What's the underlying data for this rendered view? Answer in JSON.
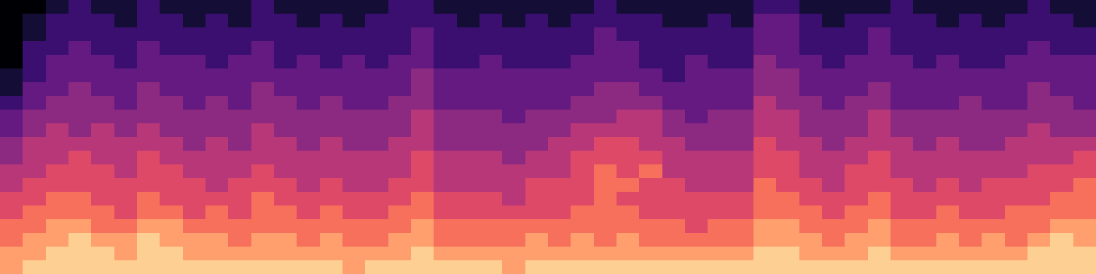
{
  "chart_data": {
    "type": "heatmap",
    "tick_labels": false,
    "color_range": [
      0,
      10
    ],
    "cells": [
      [
        0,
        0,
        1,
        2,
        1,
        1,
        2,
        1,
        1,
        1,
        1,
        2,
        1,
        1,
        1,
        1,
        1,
        2,
        2,
        1,
        1,
        1,
        1,
        1,
        1,
        1,
        2,
        1,
        1,
        1,
        1,
        1,
        1,
        2,
        2,
        1,
        1,
        1,
        1,
        2,
        1,
        1,
        1,
        1,
        1,
        2,
        1,
        1
      ],
      [
        0,
        1,
        2,
        2,
        2,
        1,
        2,
        2,
        1,
        2,
        1,
        2,
        2,
        1,
        2,
        1,
        2,
        2,
        2,
        2,
        1,
        2,
        1,
        2,
        1,
        2,
        2,
        2,
        2,
        1,
        1,
        2,
        1,
        3,
        3,
        2,
        1,
        2,
        2,
        2,
        2,
        1,
        2,
        1,
        2,
        2,
        2,
        1
      ],
      [
        0,
        1,
        2,
        2,
        2,
        2,
        2,
        2,
        2,
        2,
        2,
        2,
        2,
        2,
        2,
        2,
        2,
        2,
        3,
        2,
        2,
        2,
        2,
        2,
        2,
        2,
        3,
        2,
        2,
        2,
        2,
        2,
        2,
        3,
        3,
        2,
        2,
        2,
        3,
        2,
        2,
        2,
        2,
        2,
        2,
        2,
        2,
        2
      ],
      [
        0,
        2,
        2,
        3,
        2,
        2,
        3,
        2,
        2,
        2,
        2,
        3,
        2,
        2,
        2,
        2,
        2,
        2,
        3,
        2,
        2,
        2,
        2,
        2,
        2,
        2,
        3,
        3,
        2,
        2,
        2,
        2,
        2,
        3,
        3,
        2,
        2,
        2,
        3,
        2,
        2,
        2,
        2,
        2,
        2,
        3,
        2,
        2
      ],
      [
        0,
        2,
        3,
        3,
        3,
        2,
        3,
        3,
        3,
        2,
        3,
        3,
        2,
        3,
        2,
        3,
        2,
        3,
        3,
        2,
        2,
        3,
        2,
        2,
        2,
        3,
        3,
        3,
        2,
        2,
        3,
        2,
        2,
        4,
        3,
        3,
        2,
        3,
        3,
        3,
        2,
        3,
        2,
        2,
        3,
        3,
        3,
        3
      ],
      [
        1,
        2,
        3,
        3,
        3,
        3,
        3,
        3,
        3,
        3,
        3,
        3,
        3,
        3,
        3,
        3,
        3,
        3,
        4,
        3,
        3,
        3,
        3,
        3,
        3,
        3,
        3,
        3,
        3,
        2,
        3,
        3,
        3,
        4,
        4,
        3,
        3,
        3,
        3,
        3,
        3,
        3,
        3,
        3,
        3,
        3,
        3,
        3
      ],
      [
        1,
        3,
        3,
        4,
        3,
        3,
        4,
        3,
        3,
        3,
        3,
        4,
        3,
        3,
        3,
        3,
        3,
        3,
        4,
        3,
        3,
        3,
        3,
        3,
        3,
        3,
        4,
        4,
        3,
        3,
        3,
        3,
        3,
        4,
        4,
        3,
        3,
        3,
        4,
        3,
        3,
        3,
        3,
        3,
        3,
        4,
        3,
        3
      ],
      [
        2,
        3,
        4,
        4,
        4,
        3,
        4,
        4,
        3,
        4,
        3,
        4,
        4,
        3,
        4,
        3,
        3,
        4,
        4,
        3,
        3,
        3,
        3,
        3,
        3,
        4,
        4,
        4,
        4,
        3,
        3,
        3,
        3,
        5,
        4,
        4,
        3,
        4,
        4,
        3,
        3,
        3,
        4,
        3,
        3,
        4,
        4,
        3
      ],
      [
        3,
        4,
        4,
        4,
        4,
        4,
        4,
        4,
        4,
        4,
        4,
        4,
        4,
        4,
        4,
        4,
        4,
        4,
        5,
        4,
        4,
        4,
        3,
        4,
        4,
        4,
        4,
        5,
        5,
        4,
        3,
        4,
        4,
        5,
        5,
        4,
        4,
        4,
        5,
        4,
        4,
        4,
        4,
        4,
        4,
        4,
        4,
        4
      ],
      [
        3,
        4,
        5,
        4,
        5,
        4,
        5,
        4,
        4,
        4,
        4,
        5,
        4,
        4,
        4,
        4,
        4,
        4,
        5,
        4,
        4,
        4,
        4,
        4,
        4,
        5,
        5,
        5,
        5,
        4,
        4,
        4,
        4,
        5,
        5,
        4,
        4,
        4,
        5,
        4,
        4,
        4,
        4,
        4,
        4,
        5,
        4,
        4
      ],
      [
        4,
        5,
        5,
        5,
        5,
        5,
        5,
        5,
        4,
        5,
        4,
        5,
        5,
        4,
        5,
        4,
        4,
        5,
        5,
        4,
        4,
        4,
        4,
        4,
        5,
        5,
        6,
        6,
        5,
        5,
        4,
        4,
        4,
        6,
        5,
        5,
        4,
        5,
        5,
        5,
        4,
        5,
        4,
        4,
        5,
        5,
        5,
        5
      ],
      [
        4,
        5,
        5,
        6,
        5,
        5,
        6,
        5,
        5,
        5,
        5,
        5,
        5,
        5,
        5,
        5,
        5,
        5,
        6,
        5,
        5,
        5,
        4,
        5,
        5,
        6,
        6,
        6,
        6,
        5,
        5,
        5,
        5,
        6,
        6,
        5,
        5,
        5,
        6,
        5,
        5,
        5,
        5,
        5,
        5,
        5,
        5,
        6
      ],
      [
        5,
        5,
        6,
        6,
        6,
        5,
        6,
        6,
        5,
        5,
        5,
        6,
        5,
        5,
        5,
        5,
        5,
        5,
        6,
        5,
        5,
        5,
        5,
        5,
        5,
        6,
        7,
        6,
        7,
        5,
        5,
        5,
        5,
        6,
        6,
        5,
        5,
        6,
        6,
        5,
        5,
        5,
        5,
        5,
        5,
        6,
        6,
        6
      ],
      [
        5,
        6,
        6,
        6,
        6,
        6,
        6,
        6,
        6,
        5,
        6,
        6,
        6,
        5,
        6,
        5,
        5,
        6,
        6,
        5,
        5,
        5,
        5,
        6,
        6,
        6,
        7,
        7,
        6,
        6,
        5,
        5,
        5,
        7,
        6,
        6,
        5,
        6,
        6,
        6,
        5,
        6,
        5,
        6,
        6,
        6,
        6,
        7
      ],
      [
        6,
        6,
        7,
        7,
        6,
        6,
        7,
        6,
        6,
        6,
        6,
        7,
        6,
        6,
        6,
        6,
        6,
        6,
        7,
        6,
        6,
        6,
        5,
        6,
        6,
        6,
        7,
        6,
        6,
        6,
        6,
        6,
        6,
        7,
        7,
        6,
        6,
        6,
        7,
        6,
        6,
        6,
        6,
        6,
        6,
        6,
        7,
        7
      ],
      [
        6,
        7,
        7,
        7,
        7,
        6,
        7,
        7,
        6,
        7,
        6,
        7,
        7,
        6,
        7,
        6,
        6,
        7,
        7,
        6,
        6,
        6,
        6,
        6,
        6,
        7,
        7,
        7,
        6,
        6,
        6,
        6,
        6,
        7,
        7,
        7,
        6,
        7,
        7,
        6,
        6,
        7,
        6,
        6,
        7,
        7,
        7,
        7
      ],
      [
        7,
        7,
        8,
        8,
        7,
        7,
        8,
        8,
        7,
        7,
        7,
        7,
        7,
        7,
        7,
        7,
        7,
        7,
        8,
        7,
        7,
        7,
        7,
        7,
        7,
        7,
        7,
        7,
        7,
        7,
        6,
        7,
        7,
        8,
        8,
        7,
        7,
        7,
        8,
        7,
        7,
        7,
        7,
        7,
        7,
        7,
        8,
        8
      ],
      [
        7,
        8,
        8,
        9,
        8,
        8,
        9,
        8,
        8,
        8,
        7,
        8,
        8,
        7,
        8,
        7,
        7,
        8,
        8,
        7,
        7,
        7,
        7,
        8,
        7,
        8,
        7,
        8,
        7,
        7,
        7,
        7,
        7,
        8,
        8,
        8,
        7,
        8,
        8,
        7,
        7,
        8,
        7,
        8,
        7,
        8,
        9,
        8
      ],
      [
        8,
        8,
        9,
        9,
        9,
        8,
        9,
        9,
        8,
        8,
        8,
        8,
        8,
        8,
        8,
        8,
        8,
        8,
        9,
        8,
        8,
        8,
        8,
        8,
        8,
        8,
        8,
        8,
        8,
        8,
        8,
        8,
        8,
        9,
        9,
        8,
        8,
        8,
        9,
        8,
        8,
        8,
        8,
        8,
        8,
        9,
        9,
        9
      ],
      [
        8,
        9,
        9,
        9,
        9,
        9,
        9,
        9,
        9,
        9,
        9,
        9,
        9,
        9,
        9,
        8,
        9,
        9,
        9,
        9,
        9,
        9,
        8,
        9,
        9,
        9,
        9,
        9,
        9,
        9,
        9,
        9,
        9,
        9,
        9,
        9,
        9,
        9,
        9,
        9,
        9,
        9,
        9,
        9,
        9,
        9,
        9,
        9
      ]
    ]
  }
}
